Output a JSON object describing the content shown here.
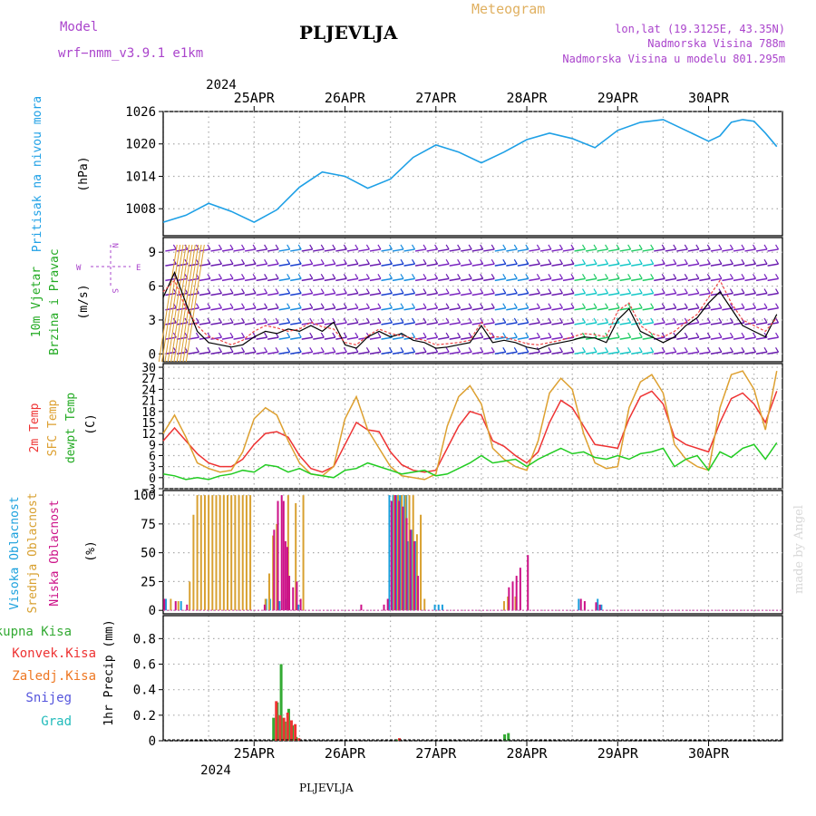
{
  "header": {
    "model_label": "Model",
    "model_name": "wrf−nmm_v3.9.1  e1km",
    "station_title": "PLJEVLJA",
    "meteogram_label": "Meteogram",
    "coords": "lon,lat (19.3125E, 43.35N)",
    "altitude": "Nadmorska Visina 788m",
    "model_altitude": "Nadmorska Visina u modelu 801.295m",
    "footer_station": "PLJEVLJA",
    "credit": "made by Angel"
  },
  "colors": {
    "pressure": "#1ea0e6",
    "temp2m": "#ee3333",
    "sfc_temp": "#dda030",
    "dewpoint": "#22cc22",
    "cloud_high": "#1aa0dd",
    "cloud_mid": "#d8a030",
    "cloud_low": "#cc1188",
    "precip_total": "#33aa33",
    "precip_conv": "#ee3333",
    "precip_freez": "#ee7722",
    "snow": "#5555dd",
    "hail": "#22bbbb",
    "header_purple": "#aa44cc",
    "header_orange": "#e0b060"
  },
  "top_axis": {
    "year": "2024",
    "days": [
      "25APR",
      "26APR",
      "27APR",
      "28APR",
      "29APR",
      "30APR"
    ]
  },
  "bottom_axis": {
    "year": "2024",
    "days": [
      "25APR",
      "26APR",
      "27APR",
      "28APR",
      "29APR",
      "30APR"
    ]
  },
  "panels": {
    "pressure": {
      "ylabel": "Pritisak na nivou mora",
      "unit": "(hPa)",
      "ticks": [
        "1008",
        "1014",
        "1020",
        "1026"
      ]
    },
    "wind": {
      "ylabel1": "10m Vjetar",
      "ylabel2": "Brzina i Pravac",
      "unit": "(m/s)",
      "ticks": [
        "0",
        "3",
        "6",
        "9"
      ],
      "compass": {
        "n": "N",
        "s": "S",
        "w": "W",
        "e": "E"
      }
    },
    "temp": {
      "ylabel1": "2m Temp",
      "ylabel2": "SFC Temp",
      "ylabel3": "dewpt Temp",
      "unit": "(C)",
      "ticks": [
        "−3",
        "0",
        "3",
        "6",
        "9",
        "12",
        "15",
        "18",
        "21",
        "24",
        "27",
        "30"
      ]
    },
    "cloud": {
      "ylabel1": "Visoka Oblacnost",
      "ylabel2": "Srednja Oblacnost",
      "ylabel3": "Niska Oblacnost",
      "unit": "(%)",
      "ticks": [
        "0",
        "25",
        "50",
        "75",
        "100"
      ]
    },
    "precip": {
      "ylabel": "1hr Precip (mm)",
      "ticks": [
        "0",
        "0.2",
        "0.4",
        "0.6",
        "0.8"
      ],
      "legend": [
        "Ukupna Kisa",
        "Konvek.Kisa",
        "Zaledj.Kisa",
        "Snijeg",
        "Grad"
      ]
    }
  },
  "chart_data": [
    {
      "type": "line",
      "title": "Pritisak na nivou mora",
      "ylabel": "(hPa)",
      "ylim": [
        1003,
        1026
      ],
      "x_hours": [
        0,
        6,
        12,
        18,
        24,
        30,
        36,
        42,
        48,
        54,
        60,
        66,
        72,
        78,
        84,
        90,
        96,
        102,
        108,
        114,
        120,
        126,
        132,
        138,
        144
      ],
      "series": [
        {
          "name": "Pritisak na nivou mora",
          "values": [
            1005.5,
            1006.8,
            1009.0,
            1007.5,
            1005.5,
            1007.8,
            1012.0,
            1014.8,
            1014.0,
            1011.8,
            1013.5,
            1017.5,
            1019.8,
            1018.5,
            1016.5,
            1018.5,
            1020.8,
            1022.0,
            1021.0,
            1019.3,
            1022.5,
            1024.0,
            1024.5,
            1022.5,
            1020.5
          ]
        }
      ],
      "extra_series": [
        {
          "name": "",
          "x_hours": [
            147,
            150,
            153,
            156,
            159,
            162
          ],
          "values": [
            1021.5,
            1024.0,
            1024.5,
            1024.2,
            1022.0,
            1019.5
          ]
        }
      ]
    },
    {
      "type": "line",
      "title": "10m Vjetar Brzina i Pravac",
      "ylabel": "(m/s)",
      "ylim": [
        -0.7,
        10.3
      ],
      "x_hours": [
        0,
        3,
        6,
        9,
        12,
        15,
        18,
        21,
        24,
        27,
        30,
        33,
        36,
        39,
        42,
        45,
        48,
        51,
        54,
        57,
        60,
        63,
        66,
        69,
        72,
        75,
        78,
        81,
        84,
        87,
        90,
        93,
        96,
        99,
        102,
        105,
        108,
        111,
        114,
        117,
        120,
        123,
        126,
        129,
        132,
        135,
        138,
        141,
        144,
        147,
        150,
        153,
        156,
        159,
        162
      ],
      "series": [
        {
          "name": "",
          "values": [
            5.0,
            7.2,
            4.5,
            2.0,
            1.0,
            0.8,
            0.6,
            0.8,
            1.5,
            2.0,
            1.8,
            2.2,
            2.0,
            2.5,
            2.0,
            2.8,
            0.8,
            0.5,
            1.5,
            2.0,
            1.5,
            1.8,
            1.2,
            1.0,
            0.5,
            0.6,
            0.8,
            1.0,
            2.5,
            1.0,
            1.2,
            1.0,
            0.6,
            0.4,
            0.8,
            1.0,
            1.2,
            1.5,
            1.4,
            1.0,
            3.0,
            4.0,
            2.0,
            1.5,
            1.0,
            1.5,
            2.5,
            3.2,
            4.5,
            5.5,
            4.0,
            2.5,
            2.0,
            1.5,
            3.5
          ]
        },
        {
          "name": "",
          "values": [
            5.5,
            6.5,
            4.0,
            2.5,
            1.5,
            1.2,
            0.8,
            1.2,
            2.0,
            2.5,
            2.3,
            2.0,
            2.2,
            2.8,
            2.4,
            2.2,
            1.0,
            0.8,
            1.6,
            2.2,
            1.8,
            1.6,
            1.4,
            1.2,
            0.8,
            0.9,
            1.0,
            1.2,
            2.8,
            1.5,
            1.5,
            1.2,
            0.9,
            0.8,
            1.0,
            1.2,
            1.5,
            1.8,
            1.7,
            1.5,
            3.8,
            4.5,
            2.5,
            1.8,
            1.5,
            2.0,
            2.8,
            3.5,
            5.0,
            6.5,
            4.5,
            3.0,
            2.5,
            2.0,
            3.2
          ]
        }
      ]
    },
    {
      "type": "line",
      "title": "2m Temp / SFC Temp / dewpt Temp",
      "ylabel": "(C)",
      "ylim": [
        -3,
        31
      ],
      "x_hours": [
        0,
        3,
        6,
        9,
        12,
        15,
        18,
        21,
        24,
        27,
        30,
        33,
        36,
        39,
        42,
        45,
        48,
        51,
        54,
        57,
        60,
        63,
        66,
        69,
        72,
        75,
        78,
        81,
        84,
        87,
        90,
        93,
        96,
        99,
        102,
        105,
        108,
        111,
        114,
        117,
        120,
        123,
        126,
        129,
        132,
        135,
        138,
        141,
        144,
        147,
        150,
        153,
        156,
        159,
        162
      ],
      "series": [
        {
          "name": "2m Temp",
          "values": [
            10.0,
            13.5,
            10.0,
            6.5,
            4.0,
            3.0,
            3.0,
            5.0,
            9.0,
            12.0,
            12.5,
            11.0,
            6.0,
            2.5,
            1.5,
            3.0,
            9.0,
            15.0,
            13.0,
            12.5,
            7.0,
            3.5,
            2.0,
            1.5,
            2.0,
            8.0,
            14.0,
            18.0,
            17.0,
            10.0,
            8.5,
            6.0,
            4.0,
            7.0,
            15.0,
            21.0,
            19.0,
            14.0,
            9.0,
            8.5,
            8.0,
            16.0,
            22.0,
            23.5,
            20.0,
            11.0,
            9.0,
            8.0,
            7.0,
            15.0,
            21.5,
            23.0,
            20.0,
            15.0,
            23.5
          ]
        },
        {
          "name": "SFC Temp",
          "values": [
            12.0,
            17.0,
            11.0,
            4.0,
            2.5,
            1.5,
            2.0,
            7.0,
            16.0,
            19.0,
            17.0,
            10.0,
            4.0,
            1.0,
            0.5,
            3.0,
            16.0,
            22.0,
            13.0,
            8.0,
            3.0,
            0.5,
            0.0,
            -0.5,
            1.0,
            14.0,
            22.0,
            25.0,
            20.0,
            8.0,
            5.0,
            3.0,
            2.0,
            10.0,
            23.0,
            27.0,
            24.0,
            12.0,
            4.0,
            2.5,
            3.0,
            19.0,
            26.0,
            28.0,
            23.0,
            9.0,
            5.0,
            3.0,
            2.0,
            19.0,
            28.0,
            29.0,
            24.0,
            13.0,
            29.0
          ]
        },
        {
          "name": "dewpt Temp",
          "values": [
            1.0,
            0.5,
            -0.5,
            0.0,
            -0.5,
            0.5,
            1.0,
            2.0,
            1.5,
            3.5,
            3.0,
            1.5,
            2.5,
            1.0,
            0.5,
            0.0,
            2.0,
            2.5,
            4.0,
            3.0,
            2.0,
            1.0,
            1.5,
            2.0,
            0.5,
            1.0,
            2.5,
            4.0,
            6.0,
            4.0,
            4.5,
            5.0,
            3.0,
            5.0,
            6.5,
            8.0,
            6.5,
            7.0,
            5.5,
            5.0,
            6.0,
            5.0,
            6.5,
            7.0,
            8.0,
            3.0,
            5.0,
            6.0,
            2.0,
            7.0,
            5.5,
            8.0,
            9.0,
            5.0,
            9.5
          ]
        }
      ]
    },
    {
      "type": "bar",
      "title": "Oblacnost",
      "ylabel": "(%)",
      "ylim": [
        -3,
        104
      ],
      "series": [
        {
          "name": "Visoka Oblacnost",
          "x_hours": [
            1,
            5,
            27.5,
            28.5,
            31,
            33,
            36,
            60,
            61,
            61.5,
            62,
            62.5,
            63,
            63.5,
            64,
            64.5,
            65,
            66,
            67,
            72,
            73,
            74,
            110,
            115,
            116
          ],
          "values": [
            10,
            8,
            10,
            10,
            8,
            10,
            5,
            100,
            100,
            100,
            100,
            100,
            100,
            90,
            100,
            100,
            60,
            70,
            60,
            5,
            5,
            5,
            10,
            10,
            5
          ]
        },
        {
          "name": "Srednja Oblacnost",
          "x_hours": [
            2,
            4,
            7,
            8,
            9,
            10,
            11,
            12,
            13,
            14,
            15,
            16,
            17,
            18,
            19,
            20,
            21,
            22,
            23,
            27,
            28,
            29,
            30,
            33,
            35,
            37,
            61,
            62,
            63,
            64,
            65,
            66,
            67,
            68,
            69,
            90,
            91,
            93
          ],
          "values": [
            10,
            8,
            25,
            83,
            100,
            100,
            100,
            100,
            100,
            100,
            100,
            100,
            100,
            100,
            100,
            100,
            100,
            100,
            100,
            10,
            32,
            65,
            75,
            100,
            93,
            100,
            100,
            100,
            100,
            100,
            100,
            100,
            66,
            83,
            10,
            8,
            12,
            12
          ]
        },
        {
          "name": "Niska Oblacnost",
          "x_hours": [
            0,
            3,
            6,
            26.5,
            29,
            30,
            31,
            31.5,
            32,
            32.5,
            33,
            34,
            35,
            36,
            52,
            58,
            59,
            60,
            61,
            62,
            63,
            64,
            65,
            66,
            67,
            91,
            92,
            93,
            94,
            96,
            110,
            111,
            114,
            115
          ],
          "values": [
            10,
            8,
            5,
            5,
            70,
            95,
            100,
            95,
            60,
            55,
            30,
            20,
            25,
            10,
            5,
            5,
            10,
            95,
            100,
            95,
            90,
            80,
            70,
            60,
            30,
            20,
            25,
            30,
            37,
            48,
            10,
            8,
            7,
            5
          ]
        }
      ]
    },
    {
      "type": "bar",
      "title": "1hr Precip (mm)",
      "ylabel": "1hr Precip (mm)",
      "ylim": [
        0,
        0.98
      ],
      "series": [
        {
          "name": "Ukupna Kisa",
          "x_hours": [
            29.5,
            30.5,
            31.5,
            32.5,
            33.5,
            34.5,
            35.5,
            62,
            90.5,
            91.5
          ],
          "values": [
            0.18,
            0.3,
            0.6,
            0.15,
            0.25,
            0.12,
            0.03,
            0.01,
            0.05,
            0.06
          ]
        },
        {
          "name": "Konvek.Kisa",
          "x_hours": [
            29.5,
            30.5,
            31.5,
            32.5,
            33.5,
            34.5,
            35.5,
            62
          ],
          "values": [
            0.31,
            0.2,
            0.18,
            0.22,
            0.16,
            0.13,
            0.02,
            0.02
          ]
        }
      ]
    }
  ]
}
